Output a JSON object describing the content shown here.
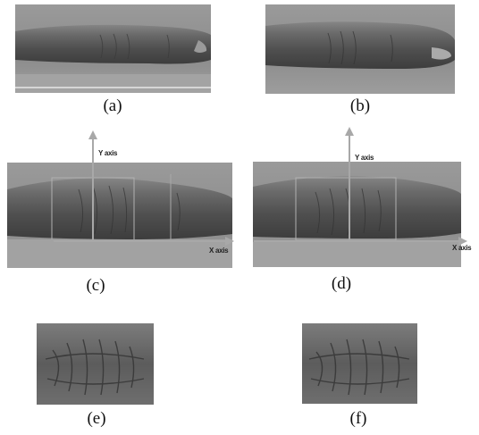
{
  "captions": [
    "(a)",
    "(b)",
    "(c)",
    "(d)",
    "(e)",
    "(f)"
  ],
  "axis_labels": {
    "c_y": "Y axis",
    "c_x": "X axis",
    "d_y": "Y axis",
    "d_x": "X axis"
  },
  "colors": {
    "background_gray": "#8f8f8f",
    "finger_dark": "#4a4a4a",
    "finger_light": "#8a8a8a",
    "axis": "#a8a8a8"
  }
}
